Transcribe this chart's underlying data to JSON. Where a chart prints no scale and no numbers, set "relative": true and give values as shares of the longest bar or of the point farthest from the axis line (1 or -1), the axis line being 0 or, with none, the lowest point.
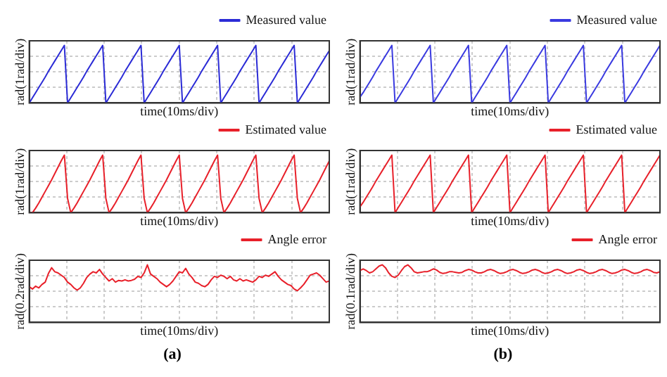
{
  "chart_data": [
    {
      "type": "line",
      "relative": true,
      "xlabel": "time(10ms/div)",
      "ylabel": "rad(1rad/div)",
      "legend": "top right",
      "grid": true,
      "marker": "none",
      "line_style": "solid",
      "categories": [
        null,
        null,
        null,
        null,
        null,
        null,
        null,
        null,
        null,
        null,
        null,
        null,
        null,
        null,
        null,
        null,
        null,
        null,
        null,
        null,
        null,
        null,
        null,
        null,
        null,
        null,
        null,
        null,
        null,
        null,
        null,
        null,
        null,
        null,
        null,
        null,
        null,
        null,
        null,
        null,
        null,
        null,
        null,
        null,
        null,
        null,
        null,
        null,
        null,
        null,
        null,
        null,
        null,
        null,
        null,
        null,
        null,
        null,
        null,
        null,
        null,
        null,
        null,
        null,
        null,
        null,
        null,
        null,
        null,
        null,
        null,
        null,
        null,
        null,
        null,
        null,
        null,
        null,
        null,
        null,
        null,
        null,
        null,
        null,
        null,
        null,
        null,
        null,
        null,
        null,
        null,
        null,
        null,
        null,
        null
      ],
      "series": [
        {
          "name": "Measured value",
          "color": "#2b2bd6",
          "values": [
            0,
            0.09,
            0.18,
            0.27,
            0.36,
            0.45,
            0.55,
            0.64,
            0.73,
            0.82,
            0.91,
            1,
            0,
            0.09,
            0.18,
            0.27,
            0.36,
            0.45,
            0.55,
            0.64,
            0.73,
            0.82,
            0.91,
            1,
            0,
            0.09,
            0.18,
            0.27,
            0.36,
            0.45,
            0.55,
            0.64,
            0.73,
            0.82,
            0.91,
            1,
            0,
            0.09,
            0.18,
            0.27,
            0.36,
            0.45,
            0.55,
            0.64,
            0.73,
            0.82,
            0.91,
            1,
            0,
            0.09,
            0.18,
            0.27,
            0.36,
            0.45,
            0.55,
            0.64,
            0.73,
            0.82,
            0.91,
            1,
            0,
            0.09,
            0.18,
            0.27,
            0.36,
            0.45,
            0.55,
            0.64,
            0.73,
            0.82,
            0.91,
            1,
            0,
            0.09,
            0.18,
            0.27,
            0.36,
            0.45,
            0.55,
            0.64,
            0.73,
            0.82,
            0.91,
            1,
            0,
            0.09,
            0.18,
            0.27,
            0.36,
            0.45,
            0.55,
            0.64,
            0.73,
            0.82,
            0.91
          ]
        }
      ]
    },
    {
      "type": "line",
      "relative": true,
      "xlabel": "time(10ms/div)",
      "ylabel": "rad(1rad/div)",
      "legend": "top right",
      "grid": true,
      "marker": "none",
      "line_style": "solid",
      "categories": [
        null,
        null,
        null,
        null,
        null,
        null,
        null,
        null,
        null,
        null,
        null,
        null,
        null,
        null,
        null,
        null,
        null,
        null,
        null,
        null,
        null,
        null,
        null,
        null,
        null,
        null,
        null,
        null,
        null,
        null,
        null,
        null,
        null,
        null,
        null,
        null,
        null,
        null,
        null,
        null,
        null,
        null,
        null,
        null,
        null,
        null,
        null,
        null,
        null,
        null,
        null,
        null,
        null,
        null,
        null,
        null,
        null,
        null,
        null,
        null,
        null,
        null,
        null,
        null,
        null,
        null,
        null,
        null,
        null,
        null,
        null,
        null,
        null,
        null,
        null,
        null,
        null,
        null,
        null,
        null,
        null,
        null,
        null,
        null,
        null,
        null,
        null,
        null,
        null,
        null,
        null,
        null,
        null,
        null,
        null
      ],
      "series": [
        {
          "name": "Estimated value",
          "color": "#e8202a",
          "values": [
            0,
            0,
            0.08,
            0.17,
            0.27,
            0.37,
            0.47,
            0.57,
            0.68,
            0.79,
            0.9,
            1,
            0.25,
            0,
            0.08,
            0.17,
            0.27,
            0.37,
            0.47,
            0.57,
            0.68,
            0.79,
            0.9,
            1,
            0.25,
            0,
            0.08,
            0.17,
            0.27,
            0.37,
            0.47,
            0.57,
            0.68,
            0.79,
            0.9,
            1,
            0.25,
            0,
            0.08,
            0.17,
            0.27,
            0.37,
            0.47,
            0.57,
            0.68,
            0.79,
            0.9,
            1,
            0.25,
            0,
            0.08,
            0.17,
            0.27,
            0.37,
            0.47,
            0.57,
            0.68,
            0.79,
            0.9,
            1,
            0.25,
            0,
            0.08,
            0.17,
            0.27,
            0.37,
            0.47,
            0.57,
            0.68,
            0.79,
            0.9,
            1,
            0.25,
            0,
            0.08,
            0.17,
            0.27,
            0.37,
            0.47,
            0.57,
            0.68,
            0.79,
            0.9,
            1,
            0.25,
            0,
            0.08,
            0.17,
            0.27,
            0.37,
            0.47,
            0.57,
            0.68,
            0.79,
            0.9
          ]
        }
      ]
    },
    {
      "type": "line",
      "relative": true,
      "xlabel": "time(10ms/div)",
      "ylabel": "rad(0.2rad/div)",
      "legend": "top right",
      "grid": true,
      "marker": "none",
      "line_style": "solid",
      "annotations": [
        "(a)"
      ],
      "categories": [
        null,
        null,
        null,
        null,
        null,
        null,
        null,
        null,
        null,
        null,
        null,
        null,
        null,
        null,
        null,
        null,
        null,
        null,
        null,
        null,
        null,
        null,
        null,
        null,
        null,
        null,
        null,
        null,
        null,
        null,
        null,
        null,
        null,
        null,
        null,
        null,
        null,
        null,
        null,
        null,
        null,
        null,
        null,
        null,
        null,
        null,
        null,
        null,
        null,
        null,
        null,
        null,
        null,
        null,
        null,
        null,
        null,
        null,
        null,
        null,
        null,
        null,
        null,
        null,
        null,
        null,
        null,
        null,
        null,
        null,
        null,
        null,
        null,
        null,
        null,
        null,
        null,
        null,
        null,
        null,
        null,
        null,
        null,
        null,
        null,
        null,
        null,
        null,
        null,
        null,
        null,
        null,
        null,
        null,
        null
      ],
      "series": [
        {
          "name": "Angle error",
          "color": "#e8202a",
          "values": [
            0.62,
            0.58,
            0.63,
            0.6,
            0.66,
            0.7,
            0.85,
            0.95,
            0.88,
            0.86,
            0.82,
            0.78,
            0.7,
            0.66,
            0.6,
            0.56,
            0.6,
            0.68,
            0.78,
            0.84,
            0.88,
            0.86,
            0.92,
            0.84,
            0.78,
            0.72,
            0.76,
            0.7,
            0.73,
            0.72,
            0.74,
            0.72,
            0.73,
            0.75,
            0.8,
            0.78,
            0.86,
            1,
            0.84,
            0.8,
            0.76,
            0.7,
            0.66,
            0.62,
            0.66,
            0.72,
            0.8,
            0.88,
            0.86,
            0.94,
            0.84,
            0.78,
            0.7,
            0.68,
            0.64,
            0.62,
            0.66,
            0.74,
            0.8,
            0.78,
            0.82,
            0.8,
            0.76,
            0.8,
            0.74,
            0.72,
            0.76,
            0.72,
            0.74,
            0.72,
            0.7,
            0.74,
            0.8,
            0.78,
            0.82,
            0.8,
            0.84,
            0.88,
            0.8,
            0.74,
            0.7,
            0.66,
            0.64,
            0.58,
            0.55,
            0.6,
            0.66,
            0.74,
            0.82,
            0.84,
            0.86,
            0.82,
            0.76,
            0.7,
            0.72
          ]
        }
      ]
    },
    {
      "type": "line",
      "relative": true,
      "xlabel": "time(10ms/div)",
      "ylabel": "rad(1rad/div)",
      "legend": "top right",
      "grid": true,
      "marker": "none",
      "line_style": "solid",
      "categories": [
        null,
        null,
        null,
        null,
        null,
        null,
        null,
        null,
        null,
        null,
        null,
        null,
        null,
        null,
        null,
        null,
        null,
        null,
        null,
        null,
        null,
        null,
        null,
        null,
        null,
        null,
        null,
        null,
        null,
        null,
        null,
        null,
        null,
        null,
        null,
        null,
        null,
        null,
        null,
        null,
        null,
        null,
        null,
        null,
        null,
        null,
        null,
        null,
        null,
        null,
        null,
        null,
        null,
        null,
        null,
        null,
        null,
        null,
        null,
        null,
        null,
        null,
        null,
        null,
        null,
        null,
        null,
        null,
        null,
        null,
        null,
        null,
        null,
        null,
        null,
        null,
        null,
        null,
        null,
        null,
        null,
        null,
        null,
        null,
        null,
        null,
        null,
        null,
        null,
        null,
        null,
        null,
        null,
        null,
        null
      ],
      "series": [
        {
          "name": "Measured value",
          "color": "#3a3ae0",
          "values": [
            0.1,
            0.18,
            0.27,
            0.36,
            0.45,
            0.55,
            0.64,
            0.73,
            0.82,
            0.91,
            1,
            0,
            0.09,
            0.18,
            0.27,
            0.36,
            0.45,
            0.55,
            0.64,
            0.73,
            0.82,
            0.91,
            1,
            0,
            0.09,
            0.18,
            0.27,
            0.36,
            0.45,
            0.55,
            0.64,
            0.73,
            0.82,
            0.91,
            1,
            0,
            0.09,
            0.18,
            0.27,
            0.36,
            0.45,
            0.55,
            0.64,
            0.73,
            0.82,
            0.91,
            1,
            0,
            0.09,
            0.18,
            0.27,
            0.36,
            0.45,
            0.55,
            0.64,
            0.73,
            0.82,
            0.91,
            1,
            0,
            0.09,
            0.18,
            0.27,
            0.36,
            0.45,
            0.55,
            0.64,
            0.73,
            0.82,
            0.91,
            1,
            0,
            0.09,
            0.18,
            0.27,
            0.36,
            0.45,
            0.55,
            0.64,
            0.73,
            0.82,
            0.91,
            1,
            0,
            0.09,
            0.18,
            0.27,
            0.36,
            0.45,
            0.55,
            0.64,
            0.73,
            0.82,
            0.91,
            1
          ]
        }
      ]
    },
    {
      "type": "line",
      "relative": true,
      "xlabel": "time(10ms/div)",
      "ylabel": "rad(1rad/div)",
      "legend": "top right",
      "grid": true,
      "marker": "none",
      "line_style": "solid",
      "categories": [
        null,
        null,
        null,
        null,
        null,
        null,
        null,
        null,
        null,
        null,
        null,
        null,
        null,
        null,
        null,
        null,
        null,
        null,
        null,
        null,
        null,
        null,
        null,
        null,
        null,
        null,
        null,
        null,
        null,
        null,
        null,
        null,
        null,
        null,
        null,
        null,
        null,
        null,
        null,
        null,
        null,
        null,
        null,
        null,
        null,
        null,
        null,
        null,
        null,
        null,
        null,
        null,
        null,
        null,
        null,
        null,
        null,
        null,
        null,
        null,
        null,
        null,
        null,
        null,
        null,
        null,
        null,
        null,
        null,
        null,
        null,
        null,
        null,
        null,
        null,
        null,
        null,
        null,
        null,
        null,
        null,
        null,
        null,
        null,
        null,
        null,
        null,
        null,
        null,
        null,
        null,
        null,
        null,
        null,
        null
      ],
      "series": [
        {
          "name": "Estimated value",
          "color": "#e8202a",
          "values": [
            0.1,
            0.18,
            0.27,
            0.36,
            0.45,
            0.55,
            0.64,
            0.73,
            0.82,
            0.91,
            1,
            0,
            0.09,
            0.18,
            0.27,
            0.36,
            0.45,
            0.55,
            0.64,
            0.73,
            0.82,
            0.91,
            1,
            0,
            0.09,
            0.18,
            0.27,
            0.36,
            0.45,
            0.55,
            0.64,
            0.73,
            0.82,
            0.91,
            1,
            0,
            0.09,
            0.18,
            0.27,
            0.36,
            0.45,
            0.55,
            0.64,
            0.73,
            0.82,
            0.91,
            1,
            0,
            0.09,
            0.18,
            0.27,
            0.36,
            0.45,
            0.55,
            0.64,
            0.73,
            0.82,
            0.91,
            1,
            0,
            0.09,
            0.18,
            0.27,
            0.36,
            0.45,
            0.55,
            0.64,
            0.73,
            0.82,
            0.91,
            1,
            0,
            0.09,
            0.18,
            0.27,
            0.36,
            0.45,
            0.55,
            0.64,
            0.73,
            0.82,
            0.91,
            1,
            0,
            0.09,
            0.18,
            0.27,
            0.36,
            0.45,
            0.55,
            0.64,
            0.73,
            0.82,
            0.91,
            1
          ]
        }
      ]
    },
    {
      "type": "line",
      "relative": true,
      "xlabel": "time(10ms/div)",
      "ylabel": "rad(0.1rad/div)",
      "legend": "top right",
      "grid": true,
      "marker": "none",
      "line_style": "solid",
      "annotations": [
        "(b)"
      ],
      "categories": [
        null,
        null,
        null,
        null,
        null,
        null,
        null,
        null,
        null,
        null,
        null,
        null,
        null,
        null,
        null,
        null,
        null,
        null,
        null,
        null,
        null,
        null,
        null,
        null,
        null,
        null,
        null,
        null,
        null,
        null,
        null,
        null,
        null,
        null,
        null,
        null,
        null,
        null,
        null,
        null,
        null,
        null,
        null,
        null,
        null,
        null,
        null,
        null,
        null,
        null,
        null,
        null,
        null,
        null,
        null,
        null,
        null,
        null,
        null,
        null,
        null,
        null,
        null,
        null,
        null,
        null,
        null,
        null,
        null,
        null,
        null,
        null,
        null,
        null,
        null,
        null,
        null,
        null,
        null,
        null,
        null,
        null,
        null,
        null,
        null,
        null,
        null,
        null,
        null,
        null,
        null,
        null,
        null,
        null,
        null
      ],
      "series": [
        {
          "name": "Angle error",
          "color": "#e8202a",
          "values": [
            0.9,
            0.93,
            0.9,
            0.86,
            0.88,
            0.93,
            0.98,
            1,
            0.95,
            0.86,
            0.8,
            0.78,
            0.82,
            0.9,
            0.97,
            1,
            0.95,
            0.88,
            0.86,
            0.87,
            0.88,
            0.88,
            0.9,
            0.93,
            0.91,
            0.87,
            0.85,
            0.86,
            0.88,
            0.88,
            0.87,
            0.86,
            0.87,
            0.9,
            0.92,
            0.91,
            0.88,
            0.86,
            0.86,
            0.88,
            0.91,
            0.92,
            0.9,
            0.87,
            0.85,
            0.86,
            0.88,
            0.91,
            0.92,
            0.9,
            0.87,
            0.85,
            0.86,
            0.88,
            0.91,
            0.92,
            0.9,
            0.87,
            0.85,
            0.86,
            0.88,
            0.91,
            0.92,
            0.9,
            0.87,
            0.85,
            0.86,
            0.88,
            0.91,
            0.92,
            0.9,
            0.87,
            0.85,
            0.86,
            0.88,
            0.91,
            0.92,
            0.9,
            0.87,
            0.85,
            0.86,
            0.88,
            0.91,
            0.92,
            0.9,
            0.87,
            0.85,
            0.86,
            0.88,
            0.91,
            0.92,
            0.9,
            0.87,
            0.86,
            0.88
          ]
        }
      ]
    }
  ]
}
